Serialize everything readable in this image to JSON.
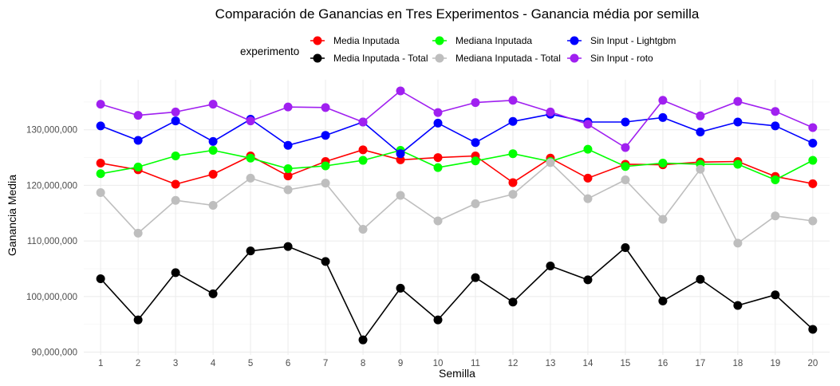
{
  "chart_data": {
    "type": "line",
    "title": "Comparación de Ganancias en Tres Experimentos - Ganancia média por semilla",
    "xlabel": "Semilla",
    "ylabel": "Ganancia Media",
    "x": [
      1,
      2,
      3,
      4,
      5,
      6,
      7,
      8,
      9,
      10,
      11,
      12,
      13,
      14,
      15,
      16,
      17,
      18,
      19,
      20
    ],
    "ylim": [
      89500000,
      139000000
    ],
    "y_ticks": [
      90000000,
      100000000,
      110000000,
      120000000,
      130000000
    ],
    "y_tick_labels": [
      "90,000,000",
      "100,000,000",
      "110,000,000",
      "120,000,000",
      "130,000,000"
    ],
    "grid": true,
    "legend": {
      "title": "experimento",
      "position": "top"
    },
    "series": [
      {
        "name": "Media Inputada",
        "color": "#ff0000",
        "values": [
          124000000,
          122800000,
          120200000,
          122000000,
          125300000,
          121700000,
          124300000,
          126400000,
          124600000,
          125000000,
          125300000,
          120500000,
          124900000,
          121300000,
          123800000,
          123700000,
          124200000,
          124300000,
          121600000,
          120300000
        ]
      },
      {
        "name": "Media Inputada - Total",
        "color": "#000000",
        "values": [
          103200000,
          95800000,
          104300000,
          100500000,
          108200000,
          109000000,
          106300000,
          92200000,
          101500000,
          95800000,
          103400000,
          99000000,
          105500000,
          103000000,
          108800000,
          99200000,
          103100000,
          98400000,
          100300000,
          94100000
        ]
      },
      {
        "name": "Mediana Inputada",
        "color": "#00ff00",
        "values": [
          122100000,
          123300000,
          125300000,
          126300000,
          124900000,
          123000000,
          123500000,
          124500000,
          126300000,
          123200000,
          124400000,
          125700000,
          124300000,
          126500000,
          123400000,
          124000000,
          123800000,
          123800000,
          121000000,
          124500000
        ]
      },
      {
        "name": "Mediana Inputada - Total",
        "color": "#bebebe",
        "values": [
          118700000,
          111400000,
          117300000,
          116400000,
          121300000,
          119200000,
          120400000,
          112100000,
          118200000,
          113600000,
          116700000,
          118400000,
          124100000,
          117600000,
          121000000,
          113900000,
          122900000,
          109600000,
          114500000,
          113600000
        ]
      },
      {
        "name": "Sin Input - Lightgbm",
        "color": "#0000ff",
        "values": [
          130700000,
          128100000,
          131600000,
          127900000,
          131900000,
          127200000,
          129000000,
          131400000,
          125700000,
          131200000,
          127700000,
          131500000,
          132800000,
          131400000,
          131400000,
          132200000,
          129600000,
          131400000,
          130700000,
          127600000
        ]
      },
      {
        "name": "Sin Input - roto",
        "color": "#a020f0",
        "values": [
          134600000,
          132600000,
          133200000,
          134600000,
          131600000,
          134100000,
          134000000,
          131400000,
          137000000,
          133100000,
          134900000,
          135300000,
          133200000,
          131000000,
          126800000,
          135300000,
          132500000,
          135100000,
          133300000,
          130400000
        ]
      }
    ]
  }
}
